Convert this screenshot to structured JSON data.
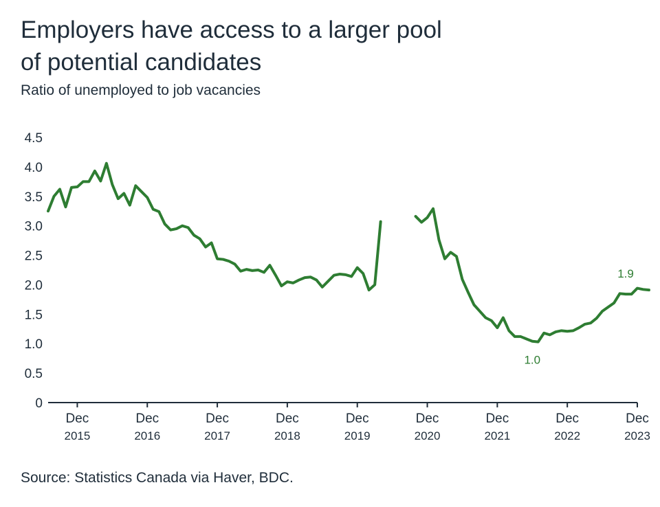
{
  "title_line1": "Employers have access to a larger pool",
  "title_line2": "of potential candidates",
  "subtitle": "Ratio of unemployed to job vacancies",
  "source": "Source: Statistics Canada via Haver, BDC.",
  "colors": {
    "line": "#2e7d32",
    "axis": "#1f2d3a",
    "text": "#1f2d3a"
  },
  "chart_data": {
    "type": "line",
    "title": "Employers have access to a larger pool of potential candidates",
    "subtitle": "Ratio of unemployed to job vacancies",
    "xlabel": "",
    "ylabel": "",
    "ylim": [
      0,
      4.5
    ],
    "yticks": [
      "0",
      "0.5",
      "1.0",
      "1.5",
      "2.0",
      "2.5",
      "3.0",
      "3.5",
      "4.0",
      "4.5"
    ],
    "grid": false,
    "x_range": [
      "2015-07",
      "2023-12"
    ],
    "xticks": [
      {
        "month": "Dec",
        "year": "2015"
      },
      {
        "month": "Dec",
        "year": "2016"
      },
      {
        "month": "Dec",
        "year": "2017"
      },
      {
        "month": "Dec",
        "year": "2018"
      },
      {
        "month": "Dec",
        "year": "2019"
      },
      {
        "month": "Dec",
        "year": "2020"
      },
      {
        "month": "Dec",
        "year": "2021"
      },
      {
        "month": "Dec",
        "year": "2022"
      },
      {
        "month": "Dec",
        "year": "2023"
      }
    ],
    "series": [
      {
        "segments": [
          {
            "start": "2015-07",
            "values": [
              3.25,
              3.5,
              3.62,
              3.32,
              3.65,
              3.66,
              3.75,
              3.75,
              3.93,
              3.76,
              4.06,
              3.7,
              3.46,
              3.55,
              3.35,
              3.68,
              3.58,
              3.48,
              3.28,
              3.24,
              3.03,
              2.93,
              2.95,
              3.0,
              2.97,
              2.84,
              2.78,
              2.64,
              2.71,
              2.44,
              2.43,
              2.4,
              2.35,
              2.23,
              2.26,
              2.24,
              2.25,
              2.21,
              2.33,
              2.16,
              1.98,
              2.05,
              2.03,
              2.08,
              2.12,
              2.13,
              2.08,
              1.96,
              2.06,
              2.16,
              2.18,
              2.17,
              2.14,
              2.29,
              2.19,
              1.91,
              2.0,
              3.07
            ]
          },
          {
            "start": "2020-10",
            "values": [
              3.16,
              3.06,
              3.14,
              3.29,
              2.76,
              2.44,
              2.55,
              2.48,
              2.09,
              1.87,
              1.66,
              1.55,
              1.44,
              1.39,
              1.27,
              1.44,
              1.22,
              1.12,
              1.12,
              1.08,
              1.04,
              1.03,
              1.18,
              1.15,
              1.2,
              1.22,
              1.21,
              1.22,
              1.27,
              1.33,
              1.35,
              1.43,
              1.55,
              1.62,
              1.69,
              1.85,
              1.84,
              1.84,
              1.94,
              1.92,
              1.91
            ]
          }
        ]
      }
    ],
    "annotations": [
      {
        "text": "1.9",
        "x": "2023-10",
        "y": 1.91
      },
      {
        "text": "1.0",
        "x": "2022-06",
        "y": 1.03
      }
    ]
  }
}
